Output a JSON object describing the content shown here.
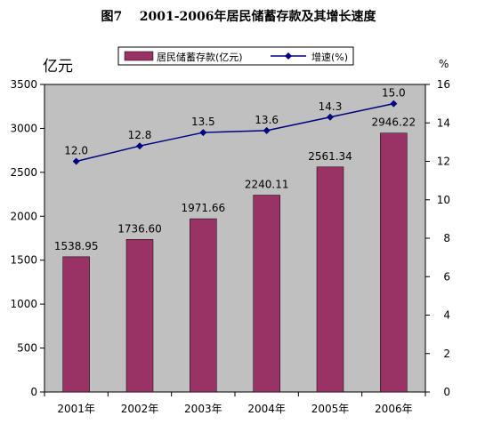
{
  "title": "图7    2001-2006年居民储蓄存款及其增长速度",
  "legend": {
    "bar_label": "居民储蓄存款(亿元)",
    "line_label": "增速(%)"
  },
  "left_unit": "亿元",
  "right_unit": "%",
  "colors": {
    "bar": "#993366",
    "line": "#000080",
    "plot_bg": "#c0c0c0"
  },
  "chart_data": {
    "type": "bar",
    "categories": [
      "2001年",
      "2002年",
      "2003年",
      "2004年",
      "2005年",
      "2006年"
    ],
    "series": [
      {
        "name": "居民储蓄存款(亿元)",
        "type": "bar",
        "axis": "left",
        "values": [
          1538.95,
          1736.6,
          1971.66,
          2240.11,
          2561.34,
          2946.22
        ],
        "labels": [
          "1538.95",
          "1736.60",
          "1971.66",
          "2240.11",
          "2561.34",
          "2946.22"
        ]
      },
      {
        "name": "增速(%)",
        "type": "line",
        "axis": "right",
        "values": [
          12.0,
          12.8,
          13.5,
          13.6,
          14.3,
          15.0
        ],
        "labels": [
          "12.0",
          "12.8",
          "13.5",
          "13.6",
          "14.3",
          "15.0"
        ]
      }
    ],
    "y_left": {
      "ylim": [
        0,
        3500
      ],
      "ticks": [
        "0",
        "500",
        "1000",
        "1500",
        "2000",
        "2500",
        "3000",
        "3500"
      ]
    },
    "y_right": {
      "ylim": [
        0,
        16
      ],
      "ticks": [
        "0",
        "2",
        "4",
        "6",
        "8",
        "10",
        "12",
        "14",
        "16"
      ]
    },
    "grid": false,
    "legend_position": "top-center"
  }
}
